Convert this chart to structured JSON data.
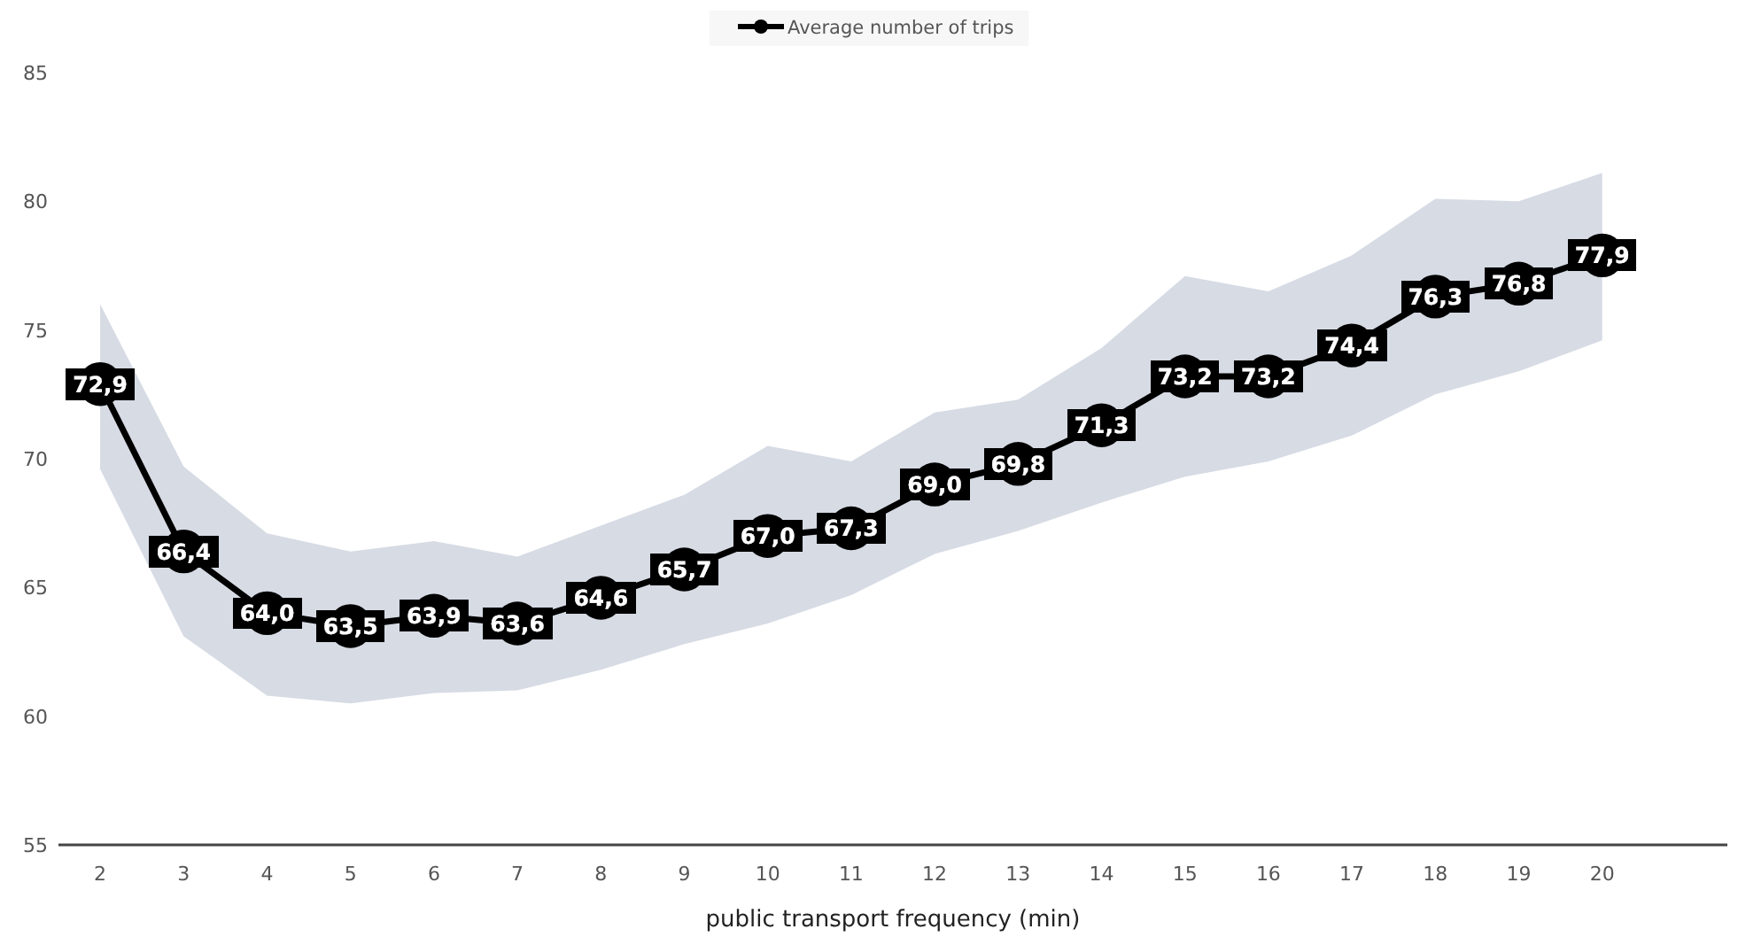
{
  "chart_data": {
    "type": "line",
    "xlabel": "public transport frequency (min)",
    "x": [
      2,
      3,
      4,
      5,
      6,
      7,
      8,
      9,
      10,
      11,
      12,
      13,
      14,
      15,
      16,
      17,
      18,
      19,
      20
    ],
    "xlim": [
      1.5,
      21.5
    ],
    "xticks": [
      2,
      3,
      4,
      5,
      6,
      7,
      8,
      9,
      10,
      11,
      12,
      13,
      14,
      15,
      16,
      17,
      18,
      19,
      20
    ],
    "ylim": [
      55,
      85
    ],
    "yticks": [
      55,
      60,
      65,
      70,
      75,
      80,
      85
    ],
    "grid": false,
    "legend": "top",
    "marker": "circle",
    "line_style": "solid",
    "series": [
      {
        "name": "Average number of trips",
        "color": "#000000",
        "values": [
          72.9,
          66.4,
          64.0,
          63.5,
          63.9,
          63.6,
          64.6,
          65.7,
          67.0,
          67.3,
          69.0,
          69.8,
          71.3,
          73.2,
          73.2,
          74.4,
          76.3,
          76.8,
          77.9
        ],
        "value_labels": [
          "72,9",
          "66,4",
          "64,0",
          "63,5",
          "63,9",
          "63,6",
          "64,6",
          "65,7",
          "67,0",
          "67,3",
          "69,0",
          "69,8",
          "71,3",
          "73,2",
          "73,2",
          "74,4",
          "76,3",
          "76,8",
          "77,9"
        ],
        "upper": [
          76.0,
          69.7,
          67.1,
          66.4,
          66.8,
          66.2,
          67.4,
          68.6,
          70.5,
          69.9,
          71.8,
          72.3,
          74.3,
          77.1,
          76.5,
          77.9,
          80.1,
          80.0,
          81.1
        ],
        "lower": [
          69.6,
          63.1,
          60.8,
          60.5,
          60.9,
          61.0,
          61.8,
          62.8,
          63.6,
          64.7,
          66.3,
          67.2,
          68.3,
          69.3,
          69.9,
          70.9,
          72.5,
          73.4,
          74.6
        ]
      }
    ]
  }
}
